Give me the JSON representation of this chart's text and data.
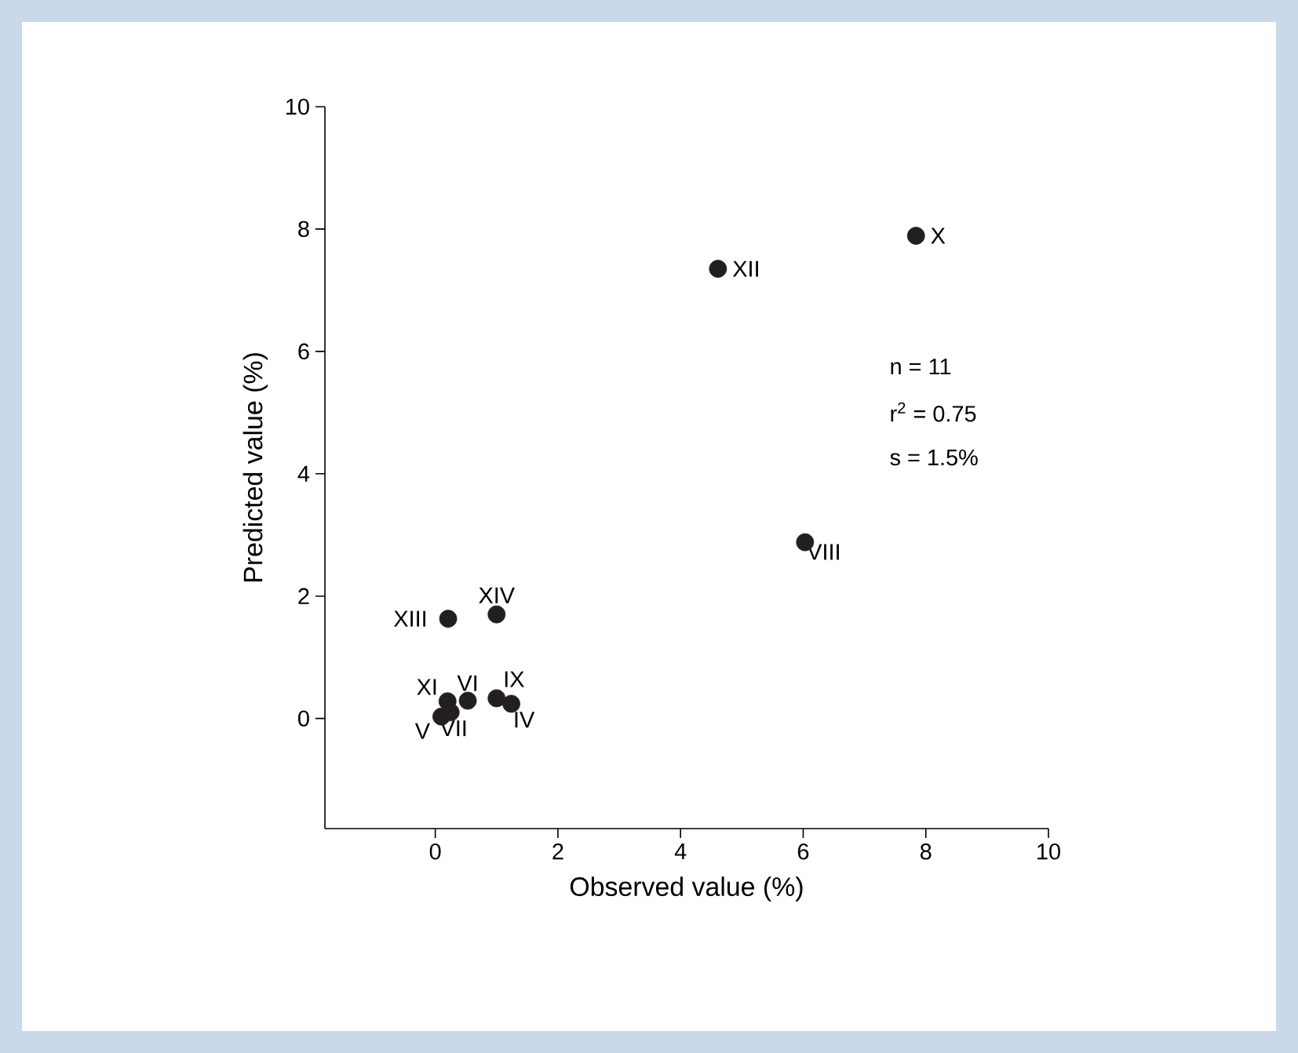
{
  "chart_data": {
    "type": "scatter",
    "xlabel": "Observed value (%)",
    "ylabel": "Predicted value (%)",
    "xlim": [
      -1.8,
      10
    ],
    "ylim": [
      -1.8,
      10
    ],
    "xticks": [
      0,
      2,
      4,
      6,
      8,
      10
    ],
    "yticks": [
      0,
      2,
      4,
      6,
      8,
      10
    ],
    "marker": "circle",
    "grid": false,
    "series": [
      {
        "color": "#231f20",
        "x": [
          7.84,
          4.61,
          6.03,
          1.0,
          0.21,
          0.2,
          0.53,
          1.0,
          0.1,
          0.25,
          1.24
        ],
        "values": [
          7.89,
          7.35,
          2.88,
          1.7,
          1.63,
          0.28,
          0.29,
          0.33,
          0.03,
          0.1,
          0.24
        ]
      }
    ],
    "annotations": [
      {
        "text": "X",
        "x": 7.84,
        "y": 7.89
      },
      {
        "text": "XII",
        "x": 4.61,
        "y": 7.35
      },
      {
        "text": "VIII",
        "x": 6.03,
        "y": 2.88
      },
      {
        "text": "XIV",
        "x": 1.0,
        "y": 1.7
      },
      {
        "text": "XIII",
        "x": 0.21,
        "y": 1.63
      },
      {
        "text": "XI",
        "x": 0.2,
        "y": 0.28
      },
      {
        "text": "VI",
        "x": 0.53,
        "y": 0.29
      },
      {
        "text": "IX",
        "x": 1.0,
        "y": 0.33
      },
      {
        "text": "V",
        "x": 0.1,
        "y": 0.03
      },
      {
        "text": "VII",
        "x": 0.25,
        "y": 0.1
      },
      {
        "text": "IV",
        "x": 1.24,
        "y": 0.24
      },
      "n = 11",
      "r$^{2}$ = 0.75",
      "s = 1.5%"
    ]
  }
}
